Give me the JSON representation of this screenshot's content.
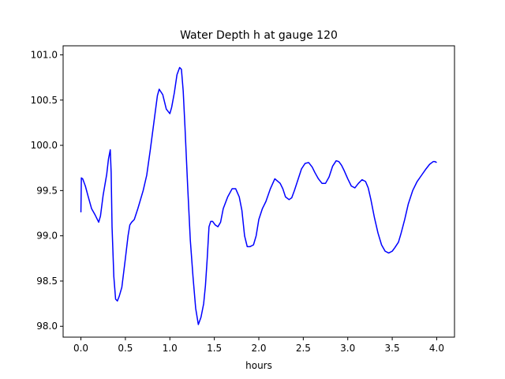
{
  "chart_data": {
    "type": "line",
    "title": "Water Depth h at gauge 120",
    "xlabel": "hours",
    "ylabel": "",
    "xlim": [
      -0.2,
      4.2
    ],
    "ylim": [
      97.88,
      101.1
    ],
    "grid": false,
    "x_ticks": [
      0.0,
      0.5,
      1.0,
      1.5,
      2.0,
      2.5,
      3.0,
      3.5,
      4.0
    ],
    "x_tick_labels": [
      "0.0",
      "0.5",
      "1.0",
      "1.5",
      "2.0",
      "2.5",
      "3.0",
      "3.5",
      "4.0"
    ],
    "y_ticks": [
      98.0,
      98.5,
      99.0,
      99.5,
      100.0,
      100.5,
      101.0
    ],
    "y_tick_labels": [
      "98.0",
      "98.5",
      "99.0",
      "99.5",
      "100.0",
      "100.5",
      "101.0"
    ],
    "series": [
      {
        "name": "",
        "color": "#0000ff",
        "x": [
          0.0,
          0.005,
          0.02,
          0.05,
          0.08,
          0.12,
          0.16,
          0.2,
          0.22,
          0.25,
          0.29,
          0.31,
          0.33,
          0.34,
          0.35,
          0.37,
          0.39,
          0.41,
          0.43,
          0.46,
          0.5,
          0.53,
          0.55,
          0.57,
          0.6,
          0.64,
          0.7,
          0.74,
          0.78,
          0.82,
          0.86,
          0.88,
          0.92,
          0.96,
          1.0,
          1.02,
          1.05,
          1.08,
          1.11,
          1.13,
          1.15,
          1.17,
          1.2,
          1.23,
          1.26,
          1.29,
          1.32,
          1.35,
          1.38,
          1.4,
          1.42,
          1.44,
          1.46,
          1.48,
          1.51,
          1.54,
          1.57,
          1.6,
          1.65,
          1.7,
          1.74,
          1.78,
          1.81,
          1.84,
          1.87,
          1.9,
          1.94,
          1.97,
          2.0,
          2.04,
          2.08,
          2.13,
          2.18,
          2.24,
          2.27,
          2.3,
          2.34,
          2.37,
          2.4,
          2.44,
          2.48,
          2.52,
          2.56,
          2.6,
          2.63,
          2.67,
          2.71,
          2.75,
          2.79,
          2.83,
          2.87,
          2.9,
          2.93,
          2.96,
          3.0,
          3.04,
          3.08,
          3.12,
          3.16,
          3.2,
          3.23,
          3.26,
          3.3,
          3.34,
          3.38,
          3.42,
          3.46,
          3.5,
          3.53,
          3.57,
          3.6,
          3.64,
          3.68,
          3.73,
          3.78,
          3.83,
          3.88,
          3.92,
          3.96,
          3.98,
          4.0
        ],
        "y": [
          99.26,
          99.64,
          99.63,
          99.55,
          99.44,
          99.3,
          99.23,
          99.15,
          99.22,
          99.45,
          99.68,
          99.85,
          99.95,
          99.7,
          99.1,
          98.55,
          98.3,
          98.28,
          98.33,
          98.43,
          98.75,
          99.0,
          99.12,
          99.15,
          99.18,
          99.3,
          99.5,
          99.67,
          99.95,
          100.25,
          100.55,
          100.62,
          100.56,
          100.4,
          100.35,
          100.42,
          100.58,
          100.78,
          100.86,
          100.84,
          100.6,
          100.2,
          99.55,
          98.95,
          98.55,
          98.2,
          98.02,
          98.1,
          98.25,
          98.45,
          98.75,
          99.1,
          99.16,
          99.16,
          99.12,
          99.1,
          99.15,
          99.3,
          99.43,
          99.52,
          99.52,
          99.43,
          99.28,
          99.0,
          98.88,
          98.88,
          98.9,
          99.0,
          99.18,
          99.3,
          99.38,
          99.52,
          99.63,
          99.58,
          99.52,
          99.43,
          99.4,
          99.42,
          99.5,
          99.62,
          99.74,
          99.8,
          99.81,
          99.76,
          99.7,
          99.63,
          99.58,
          99.58,
          99.65,
          99.77,
          99.83,
          99.82,
          99.78,
          99.72,
          99.63,
          99.55,
          99.53,
          99.58,
          99.62,
          99.6,
          99.53,
          99.4,
          99.2,
          99.03,
          98.9,
          98.83,
          98.81,
          98.83,
          98.87,
          98.93,
          99.03,
          99.18,
          99.35,
          99.5,
          99.6,
          99.67,
          99.74,
          99.79,
          99.82,
          99.82,
          99.81
        ]
      }
    ]
  }
}
